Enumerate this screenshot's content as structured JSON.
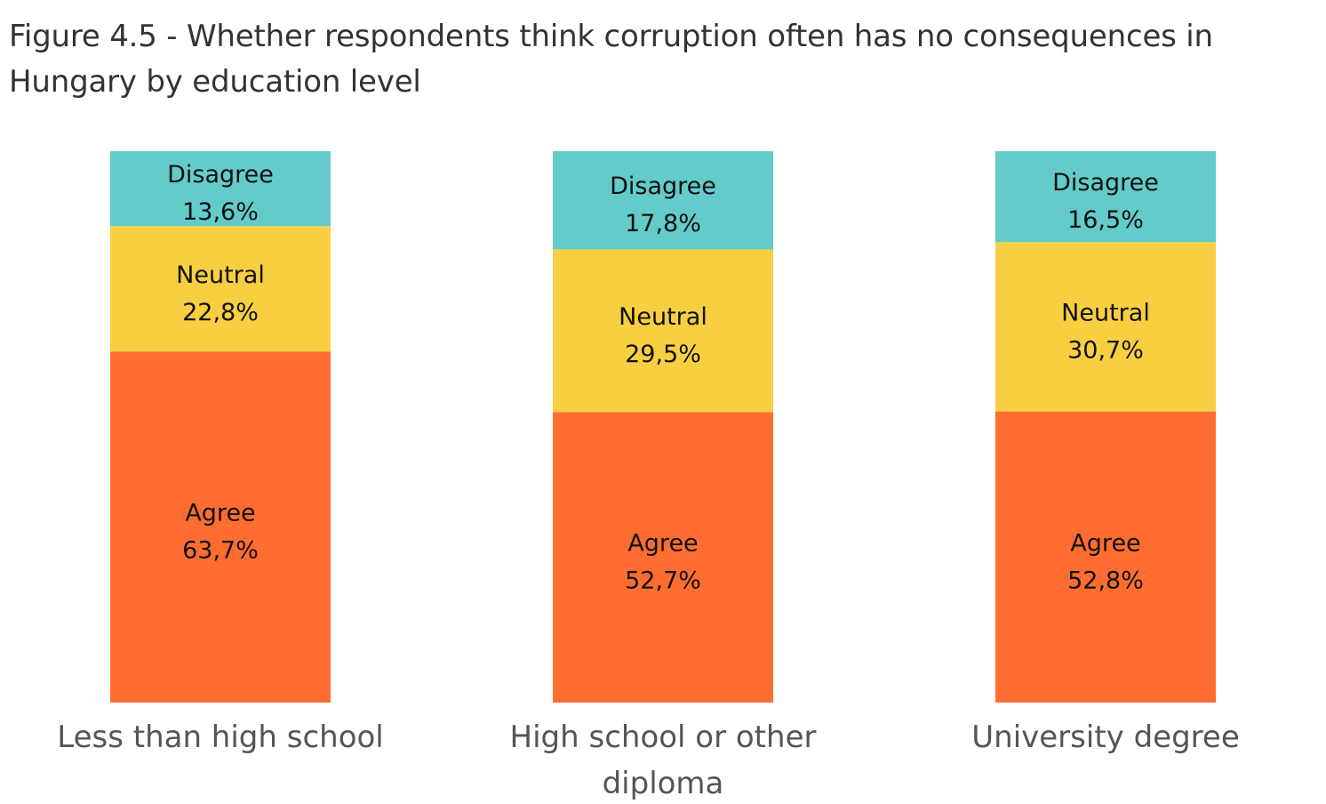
{
  "chart_data": {
    "type": "bar",
    "stacked": true,
    "normalized": true,
    "title": "Figure 4.5 - Whether respondents think corruption often has no consequences in Hungary by education level",
    "categories": [
      [
        "Less than high school"
      ],
      [
        "High school or other",
        "diploma"
      ],
      [
        "University degree"
      ]
    ],
    "series": [
      {
        "name": "Agree",
        "values": [
          63.7,
          52.7,
          52.8
        ],
        "labels": [
          "63,7%",
          "52,7%",
          "52,8%"
        ],
        "color": "#FF6D31"
      },
      {
        "name": "Neutral",
        "values": [
          22.8,
          29.5,
          30.7
        ],
        "labels": [
          "22,8%",
          "29,5%",
          "30,7%"
        ],
        "color": "#F7CF41"
      },
      {
        "name": "Disagree",
        "values": [
          13.6,
          17.8,
          16.5
        ],
        "labels": [
          "13,6%",
          "17,8%",
          "16,5%"
        ],
        "color": "#63CBC9"
      }
    ],
    "ylim": [
      0,
      100
    ],
    "grid": false,
    "legend": "none"
  }
}
